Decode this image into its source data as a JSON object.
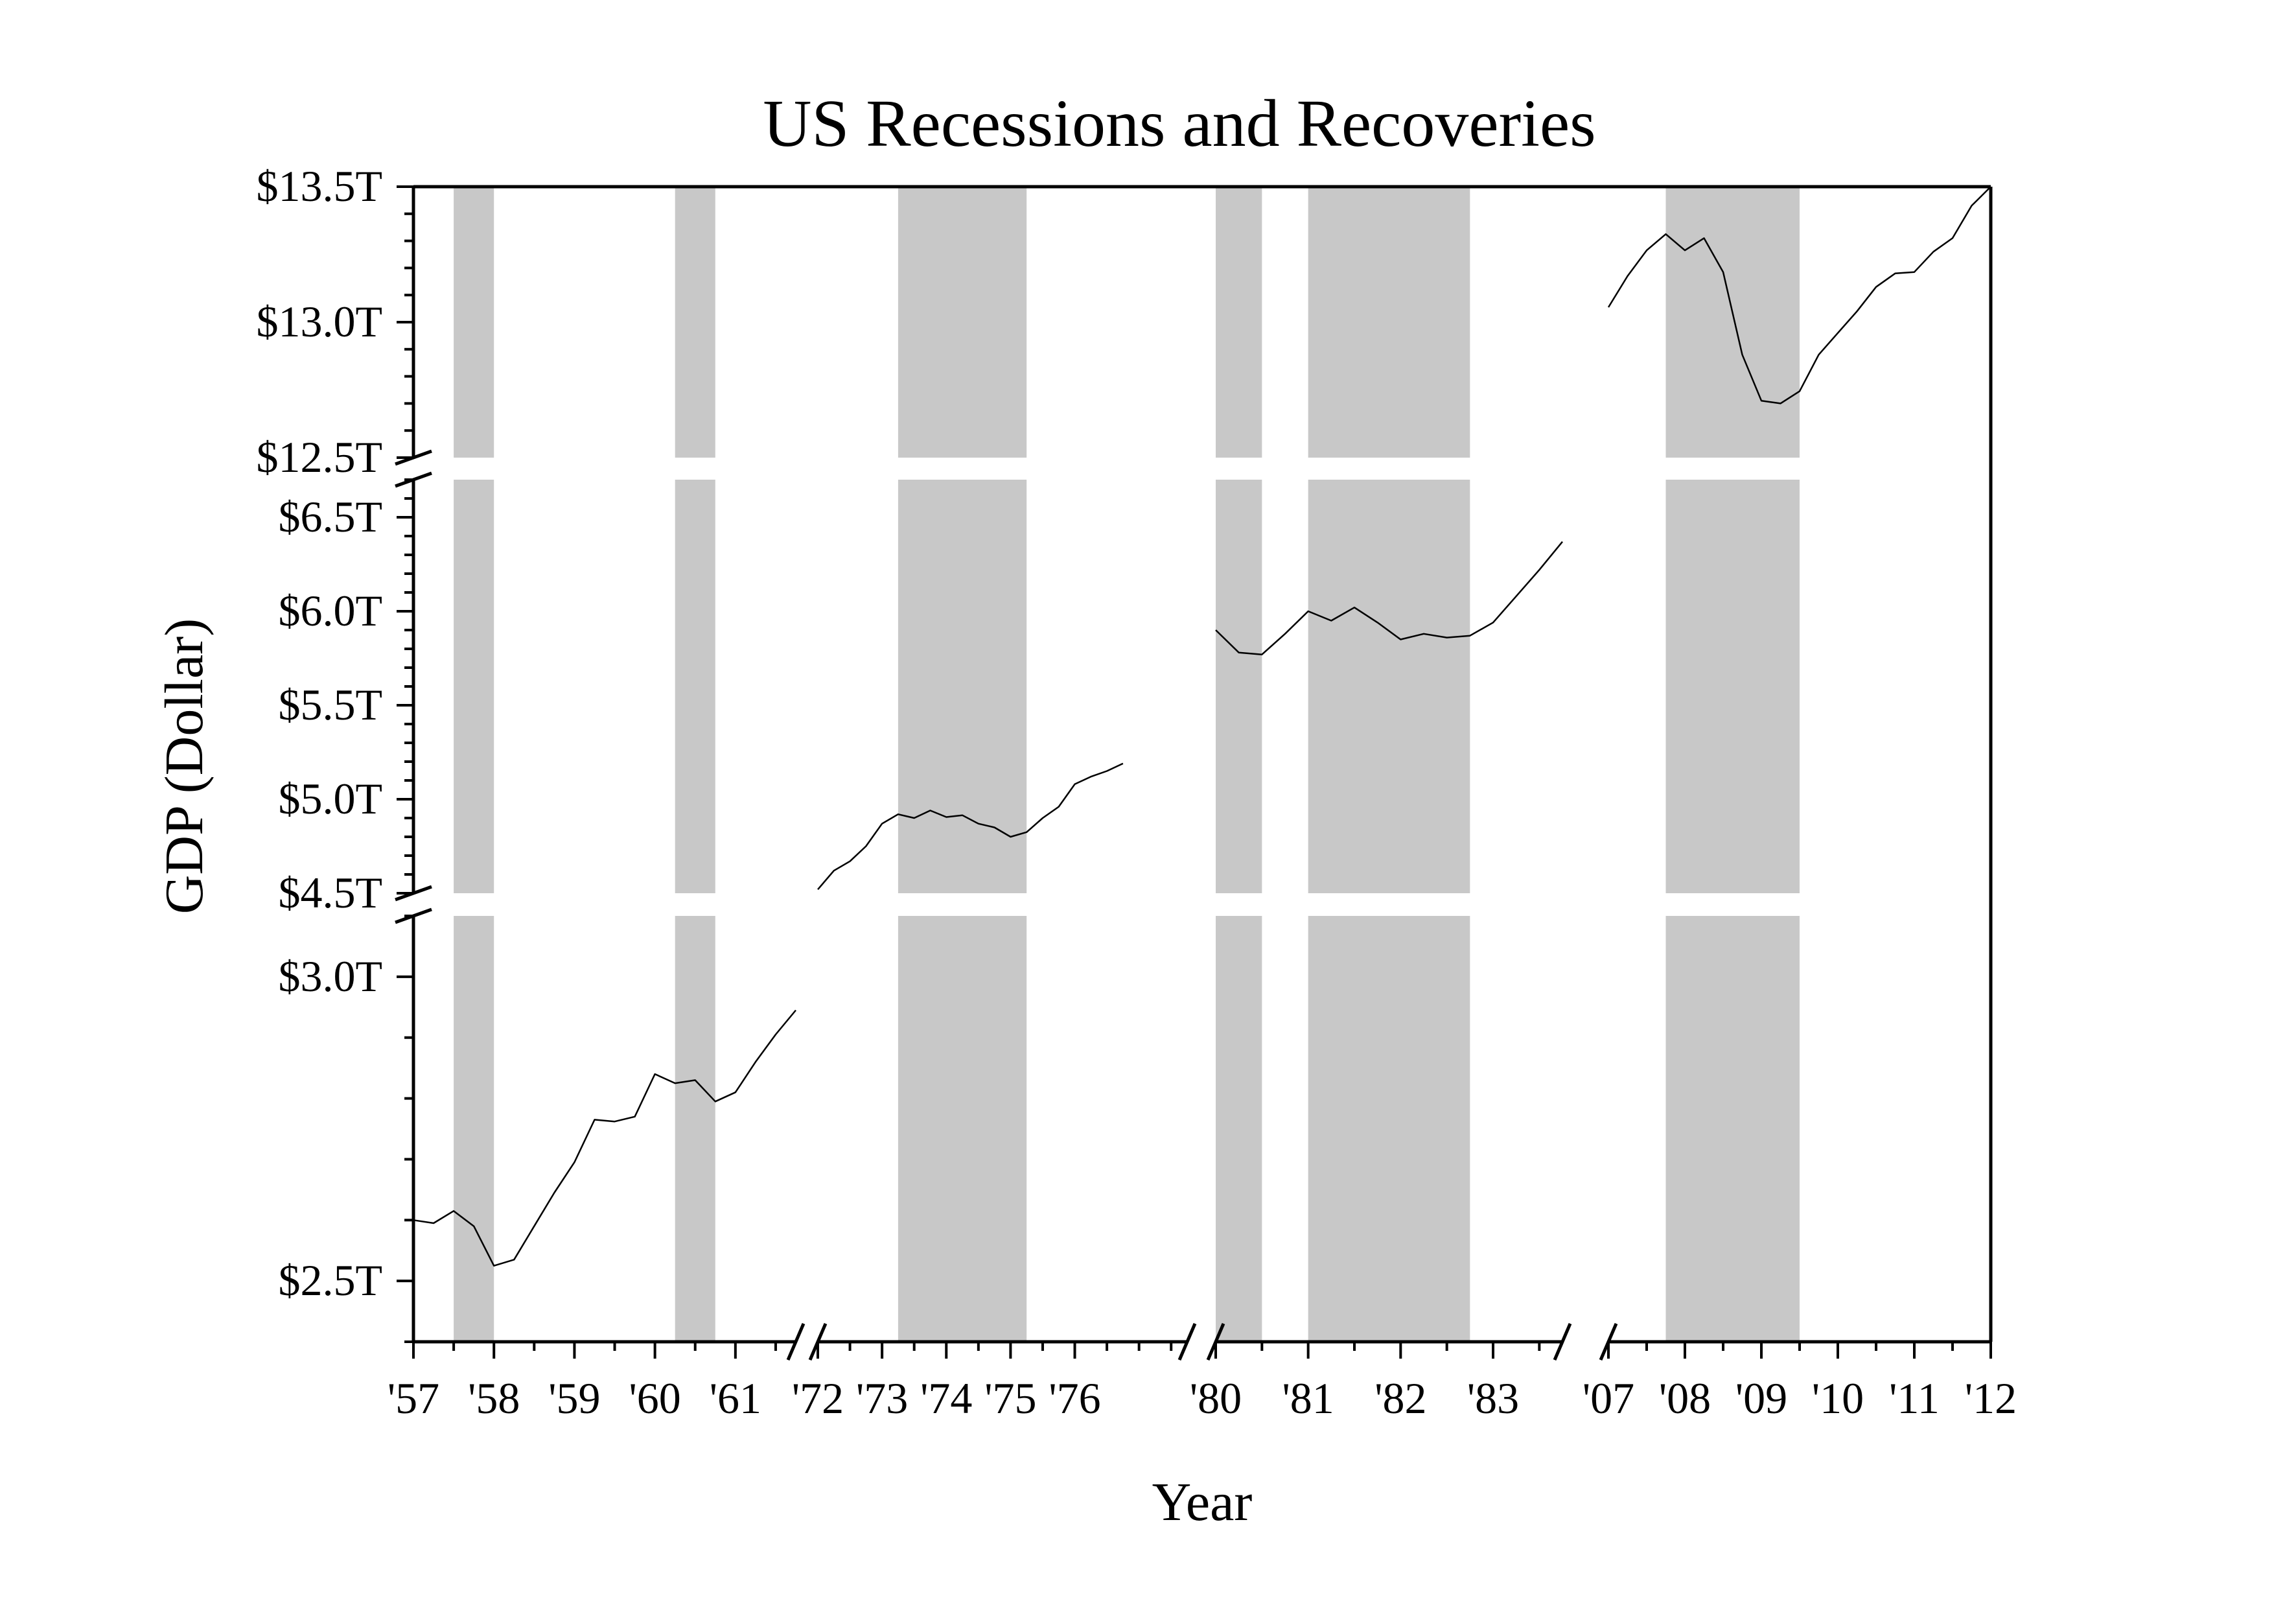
{
  "chart_data": {
    "type": "line",
    "title": "US Recessions and Recoveries",
    "xlabel": "Year",
    "ylabel": "GDP (Dollar)",
    "colors": {
      "line": "#000000",
      "recession_band": "#c8c8c8",
      "axis": "#000000"
    },
    "x_segments": [
      {
        "range": [
          1957,
          1961.75
        ],
        "tick_labels": [
          "'57",
          "'58",
          "'59",
          "'60",
          "'61"
        ],
        "tick_values": [
          1957,
          1958,
          1959,
          1960,
          1961
        ]
      },
      {
        "range": [
          1972,
          1977.75
        ],
        "tick_labels": [
          "'72",
          "'73",
          "'74",
          "'75",
          "'76"
        ],
        "tick_values": [
          1972,
          1973,
          1974,
          1975,
          1976
        ]
      },
      {
        "range": [
          1980,
          1983.75
        ],
        "tick_labels": [
          "'80",
          "'81",
          "'82",
          "'83"
        ],
        "tick_values": [
          1980,
          1981,
          1982,
          1983
        ]
      },
      {
        "range": [
          2007,
          2012
        ],
        "tick_labels": [
          "'07",
          "'08",
          "'09",
          "'10",
          "'11",
          "'12"
        ],
        "tick_values": [
          2007,
          2008,
          2009,
          2010,
          2011,
          2012
        ]
      }
    ],
    "y_segments": [
      {
        "range": [
          2.4,
          3.1
        ],
        "unit": "trillion dollars",
        "tick_labels": [
          "$2.5T",
          "$3.0T"
        ],
        "tick_values": [
          2.5,
          3.0
        ]
      },
      {
        "range": [
          4.5,
          6.7
        ],
        "unit": "trillion dollars",
        "tick_labels": [
          "$4.5T",
          "$5.0T",
          "$5.5T",
          "$6.0T",
          "$6.5T"
        ],
        "tick_values": [
          4.5,
          5.0,
          5.5,
          6.0,
          6.5
        ]
      },
      {
        "range": [
          12.5,
          13.5
        ],
        "unit": "trillion dollars",
        "tick_labels": [
          "$12.5T",
          "$13.0T",
          "$13.5T"
        ],
        "tick_values": [
          12.5,
          13.0,
          13.5
        ]
      }
    ],
    "recessions": [
      [
        1957.5,
        1958.0
      ],
      [
        1960.25,
        1960.75
      ],
      [
        1973.25,
        1975.25
      ],
      [
        1980.0,
        1980.5
      ],
      [
        1981.0,
        1982.75
      ],
      [
        2007.75,
        2009.5
      ]
    ],
    "series": [
      {
        "values": [
          {
            "x": 1957.0,
            "y": 2.6
          },
          {
            "x": 1957.25,
            "y": 2.595
          },
          {
            "x": 1957.5,
            "y": 2.615
          },
          {
            "x": 1957.75,
            "y": 2.59
          },
          {
            "x": 1958.0,
            "y": 2.525
          },
          {
            "x": 1958.25,
            "y": 2.535
          },
          {
            "x": 1958.5,
            "y": 2.59
          },
          {
            "x": 1958.75,
            "y": 2.645
          },
          {
            "x": 1959.0,
            "y": 2.695
          },
          {
            "x": 1959.25,
            "y": 2.765
          },
          {
            "x": 1959.5,
            "y": 2.762
          },
          {
            "x": 1959.75,
            "y": 2.77
          },
          {
            "x": 1960.0,
            "y": 2.84
          },
          {
            "x": 1960.25,
            "y": 2.825
          },
          {
            "x": 1960.5,
            "y": 2.83
          },
          {
            "x": 1960.75,
            "y": 2.795
          },
          {
            "x": 1961.0,
            "y": 2.81
          },
          {
            "x": 1961.25,
            "y": 2.86
          },
          {
            "x": 1961.5,
            "y": 2.905
          },
          {
            "x": 1961.75,
            "y": 2.945
          }
        ]
      },
      {
        "values": [
          {
            "x": 1972.0,
            "y": 4.52
          },
          {
            "x": 1972.25,
            "y": 4.62
          },
          {
            "x": 1972.5,
            "y": 4.67
          },
          {
            "x": 1972.75,
            "y": 4.75
          },
          {
            "x": 1973.0,
            "y": 4.87
          },
          {
            "x": 1973.25,
            "y": 4.92
          },
          {
            "x": 1973.5,
            "y": 4.9
          },
          {
            "x": 1973.75,
            "y": 4.94
          },
          {
            "x": 1974.0,
            "y": 4.905
          },
          {
            "x": 1974.25,
            "y": 4.915
          },
          {
            "x": 1974.5,
            "y": 4.87
          },
          {
            "x": 1974.75,
            "y": 4.85
          },
          {
            "x": 1975.0,
            "y": 4.8
          },
          {
            "x": 1975.25,
            "y": 4.825
          },
          {
            "x": 1975.5,
            "y": 4.9
          },
          {
            "x": 1975.75,
            "y": 4.96
          },
          {
            "x": 1976.0,
            "y": 5.08
          },
          {
            "x": 1976.25,
            "y": 5.12
          },
          {
            "x": 1976.5,
            "y": 5.15
          },
          {
            "x": 1976.75,
            "y": 5.19
          }
        ]
      },
      {
        "values": [
          {
            "x": 1980.0,
            "y": 5.9
          },
          {
            "x": 1980.25,
            "y": 5.78
          },
          {
            "x": 1980.5,
            "y": 5.77
          },
          {
            "x": 1980.75,
            "y": 5.88
          },
          {
            "x": 1981.0,
            "y": 6.0
          },
          {
            "x": 1981.25,
            "y": 5.95
          },
          {
            "x": 1981.5,
            "y": 6.02
          },
          {
            "x": 1981.75,
            "y": 5.94
          },
          {
            "x": 1982.0,
            "y": 5.85
          },
          {
            "x": 1982.25,
            "y": 5.88
          },
          {
            "x": 1982.5,
            "y": 5.86
          },
          {
            "x": 1982.75,
            "y": 5.87
          },
          {
            "x": 1983.0,
            "y": 5.94
          },
          {
            "x": 1983.25,
            "y": 6.08
          },
          {
            "x": 1983.5,
            "y": 6.22
          },
          {
            "x": 1983.75,
            "y": 6.37
          }
        ]
      },
      {
        "values": [
          {
            "x": 2007.0,
            "y": 13.055
          },
          {
            "x": 2007.25,
            "y": 13.17
          },
          {
            "x": 2007.5,
            "y": 13.265
          },
          {
            "x": 2007.75,
            "y": 13.325
          },
          {
            "x": 2008.0,
            "y": 13.265
          },
          {
            "x": 2008.25,
            "y": 13.31
          },
          {
            "x": 2008.5,
            "y": 13.185
          },
          {
            "x": 2008.75,
            "y": 12.88
          },
          {
            "x": 2009.0,
            "y": 12.71
          },
          {
            "x": 2009.25,
            "y": 12.7
          },
          {
            "x": 2009.5,
            "y": 12.745
          },
          {
            "x": 2009.75,
            "y": 12.88
          },
          {
            "x": 2010.0,
            "y": 12.96
          },
          {
            "x": 2010.25,
            "y": 13.04
          },
          {
            "x": 2010.5,
            "y": 13.13
          },
          {
            "x": 2010.75,
            "y": 13.18
          },
          {
            "x": 2011.0,
            "y": 13.185
          },
          {
            "x": 2011.25,
            "y": 13.26
          },
          {
            "x": 2011.5,
            "y": 13.31
          },
          {
            "x": 2011.75,
            "y": 13.43
          },
          {
            "x": 2012.0,
            "y": 13.5
          }
        ]
      }
    ]
  }
}
